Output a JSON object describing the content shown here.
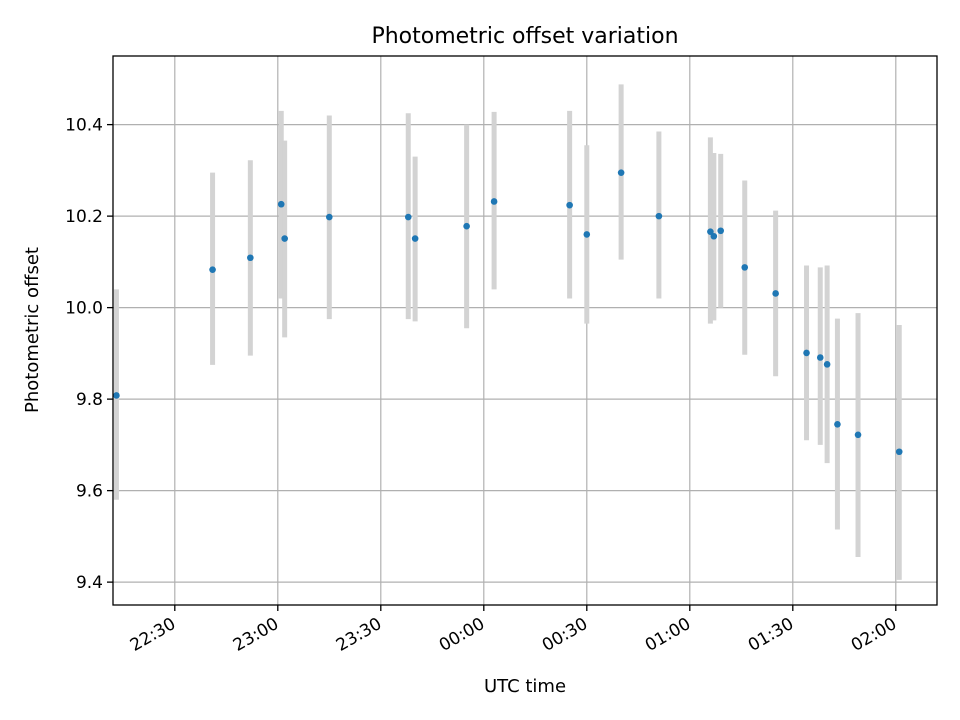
{
  "chart_data": {
    "type": "scatter",
    "title": "Photometric offset variation",
    "xlabel": "UTC time",
    "ylabel": "Photometric offset",
    "xlim": [
      "22:12",
      "02:12"
    ],
    "ylim": [
      9.35,
      10.55
    ],
    "x_ticks": [
      "22:30",
      "23:00",
      "23:30",
      "00:00",
      "00:30",
      "01:00",
      "01:30",
      "02:00"
    ],
    "y_ticks": [
      "9.4",
      "9.6",
      "9.8",
      "10.0",
      "10.2",
      "10.4"
    ],
    "grid": true,
    "point_color": "#1f77b4",
    "errorbar_color": "#d3d3d3",
    "series": [
      {
        "points": [
          {
            "time": "22:13",
            "y": 9.808,
            "low": 9.58,
            "high": 10.04
          },
          {
            "time": "22:41",
            "y": 10.083,
            "low": 9.875,
            "high": 10.295
          },
          {
            "time": "22:52",
            "y": 10.109,
            "low": 9.895,
            "high": 10.322
          },
          {
            "time": "23:01",
            "y": 10.226,
            "low": 10.02,
            "high": 10.43
          },
          {
            "time": "23:02",
            "y": 10.151,
            "low": 9.935,
            "high": 10.365
          },
          {
            "time": "23:15",
            "y": 10.198,
            "low": 9.975,
            "high": 10.42
          },
          {
            "time": "23:38",
            "y": 10.198,
            "low": 9.975,
            "high": 10.425
          },
          {
            "time": "23:40",
            "y": 10.151,
            "low": 9.97,
            "high": 10.33
          },
          {
            "time": "23:55",
            "y": 10.178,
            "low": 9.955,
            "high": 10.4
          },
          {
            "time": "00:03",
            "y": 10.232,
            "low": 10.04,
            "high": 10.428
          },
          {
            "time": "00:25",
            "y": 10.224,
            "low": 10.02,
            "high": 10.43
          },
          {
            "time": "00:30",
            "y": 10.16,
            "low": 9.965,
            "high": 10.355
          },
          {
            "time": "00:40",
            "y": 10.295,
            "low": 10.105,
            "high": 10.488
          },
          {
            "time": "00:51",
            "y": 10.2,
            "low": 10.02,
            "high": 10.385
          },
          {
            "time": "01:06",
            "y": 10.166,
            "low": 9.965,
            "high": 10.372
          },
          {
            "time": "01:07",
            "y": 10.156,
            "low": 9.972,
            "high": 10.338
          },
          {
            "time": "01:09",
            "y": 10.168,
            "low": 10.0,
            "high": 10.336
          },
          {
            "time": "01:16",
            "y": 10.088,
            "low": 9.897,
            "high": 10.278
          },
          {
            "time": "01:25",
            "y": 10.031,
            "low": 9.85,
            "high": 10.212
          },
          {
            "time": "01:34",
            "y": 9.901,
            "low": 9.71,
            "high": 10.092
          },
          {
            "time": "01:38",
            "y": 9.891,
            "low": 9.7,
            "high": 10.088
          },
          {
            "time": "01:40",
            "y": 9.876,
            "low": 9.66,
            "high": 10.092
          },
          {
            "time": "01:43",
            "y": 9.745,
            "low": 9.515,
            "high": 9.976
          },
          {
            "time": "01:49",
            "y": 9.722,
            "low": 9.455,
            "high": 9.988
          },
          {
            "time": "02:01",
            "y": 9.685,
            "low": 9.405,
            "high": 9.962
          }
        ]
      }
    ]
  }
}
